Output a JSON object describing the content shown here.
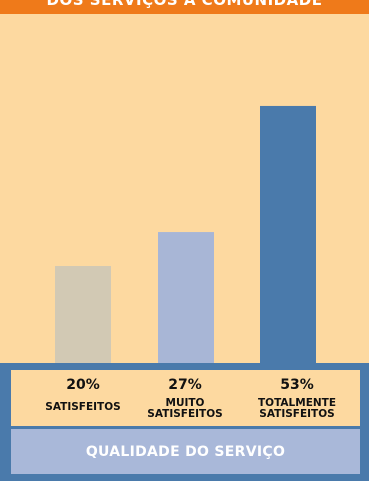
{
  "header": {
    "banner_text": "DOS SERVIÇOS À COMUNIDADE"
  },
  "chart_data": {
    "type": "bar",
    "title": "",
    "categories": [
      "SATISFEITOS",
      "MUITO SATISFEITOS",
      "TOTALMENTE SATISFEITOS"
    ],
    "category_lines": [
      [
        "SATISFEITOS"
      ],
      [
        "MUITO",
        "SATISFEITOS"
      ],
      [
        "TOTALMENTE",
        "SATISFEITOS"
      ]
    ],
    "values": [
      20,
      27,
      53
    ],
    "value_labels": [
      "20%",
      "27%",
      "53%"
    ],
    "unit": "%",
    "xlabel": "QUALIDADE DO SERVIÇO",
    "ylabel": "",
    "ylim": [
      0,
      60
    ],
    "grid": false,
    "legend": "none",
    "bar_colors": [
      "#d2c9b4",
      "#a8b6d6",
      "#4a7aab"
    ]
  },
  "colors": {
    "background": "#fdd9a0",
    "banner": "#ef7a1a",
    "footer": "#4a7aab",
    "quality_bar": "#a9b8d9"
  }
}
